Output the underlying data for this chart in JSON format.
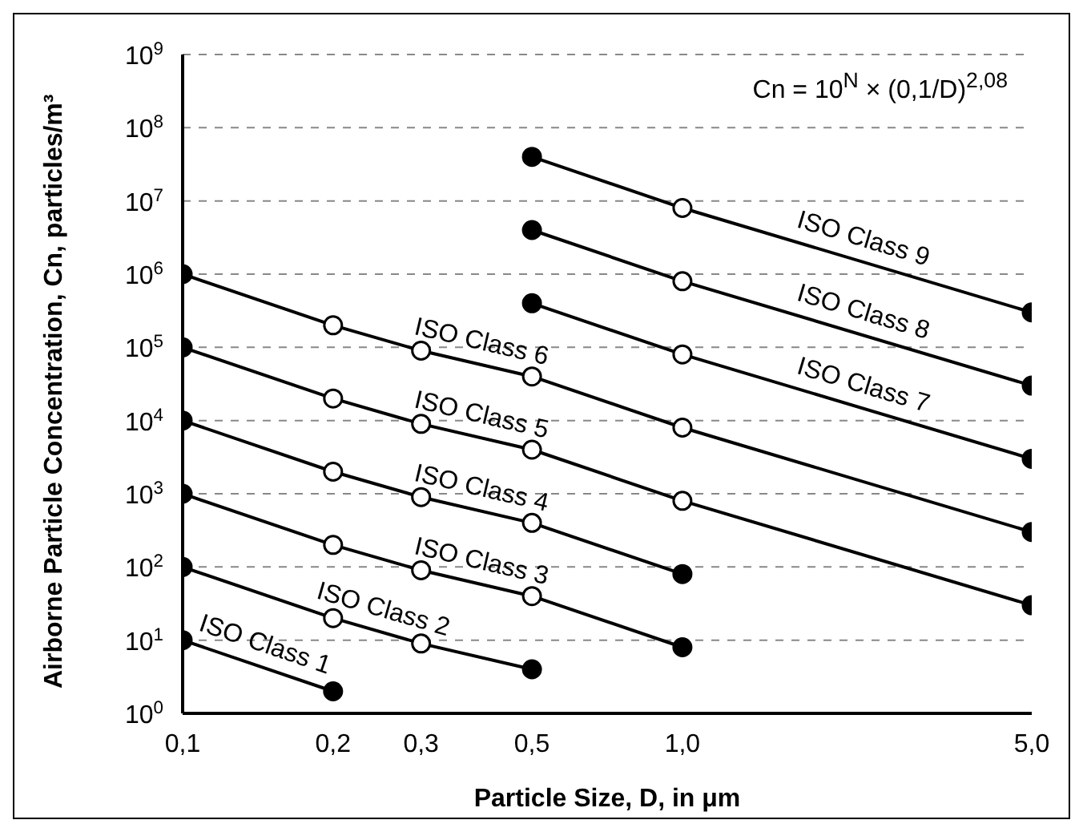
{
  "chart_data": {
    "type": "line",
    "xlabel": "Particle Size, D, in μm",
    "ylabel": "Airborne Particle Concentration, Cn, particles/m³",
    "log": "xy",
    "grid": "y",
    "marker": "circle",
    "xlim": [
      0.1,
      5
    ],
    "xticks": [
      {
        "value": 0.1,
        "label": "0,1"
      },
      {
        "value": 0.2,
        "label": "0,2"
      },
      {
        "value": 0.3,
        "label": "0,3"
      },
      {
        "value": 0.5,
        "label": "0,5"
      },
      {
        "value": 1,
        "label": "1,0"
      },
      {
        "value": 5,
        "label": "5,0"
      }
    ],
    "ylim": [
      1,
      1000000000
    ],
    "yticks": [
      {
        "value": 1,
        "label": "10$^{0}$"
      },
      {
        "value": 10,
        "label": "10$^{1}$"
      },
      {
        "value": 100,
        "label": "10$^{2}$"
      },
      {
        "value": 1000,
        "label": "10$^{3}$"
      },
      {
        "value": 10000,
        "label": "10$^{4}$"
      },
      {
        "value": 100000,
        "label": "10$^{5}$"
      },
      {
        "value": 1000000,
        "label": "10$^{6}$"
      },
      {
        "value": 10000000,
        "label": "10$^{7}$"
      },
      {
        "value": 100000000,
        "label": "10$^{8}$"
      },
      {
        "value": 1000000000,
        "label": "10$^{9}$"
      }
    ],
    "annotations": [
      "Cn = 10$^{N}$ × (0,1/D)$^{2,08}$"
    ],
    "series": [
      {
        "name": "ISO Class 1",
        "color": "#000000",
        "colors": [
          "#000000",
          "#000000"
        ],
        "x": [
          0.1,
          0.2
        ],
        "values": [
          10,
          2
        ]
      },
      {
        "name": "ISO Class 2",
        "color": "#000000",
        "colors": [
          "#000000",
          "#ffffff",
          "#ffffff",
          "#000000"
        ],
        "x": [
          0.1,
          0.2,
          0.3,
          0.5
        ],
        "values": [
          100,
          20,
          9,
          4
        ]
      },
      {
        "name": "ISO Class 3",
        "color": "#000000",
        "colors": [
          "#000000",
          "#ffffff",
          "#ffffff",
          "#ffffff",
          "#000000"
        ],
        "x": [
          0.1,
          0.2,
          0.3,
          0.5,
          1
        ],
        "values": [
          1000,
          200,
          90,
          40,
          8
        ]
      },
      {
        "name": "ISO Class 4",
        "color": "#000000",
        "colors": [
          "#000000",
          "#ffffff",
          "#ffffff",
          "#ffffff",
          "#000000"
        ],
        "x": [
          0.1,
          0.2,
          0.3,
          0.5,
          1
        ],
        "values": [
          10000,
          2000,
          900,
          400,
          80
        ]
      },
      {
        "name": "ISO Class 5",
        "color": "#000000",
        "colors": [
          "#000000",
          "#ffffff",
          "#ffffff",
          "#ffffff",
          "#ffffff",
          "#000000"
        ],
        "x": [
          0.1,
          0.2,
          0.3,
          0.5,
          1,
          5
        ],
        "values": [
          100000,
          20000,
          9000,
          4000,
          800,
          30
        ]
      },
      {
        "name": "ISO Class 6",
        "color": "#000000",
        "colors": [
          "#000000",
          "#ffffff",
          "#ffffff",
          "#ffffff",
          "#ffffff",
          "#000000"
        ],
        "x": [
          0.1,
          0.2,
          0.3,
          0.5,
          1,
          5
        ],
        "values": [
          1000000,
          200000,
          90000,
          40000,
          8000,
          300
        ]
      },
      {
        "name": "ISO Class 7",
        "color": "#000000",
        "colors": [
          "#000000",
          "#ffffff",
          "#000000"
        ],
        "x": [
          0.5,
          1,
          5
        ],
        "values": [
          400000,
          80000,
          3000
        ]
      },
      {
        "name": "ISO Class 8",
        "color": "#000000",
        "colors": [
          "#000000",
          "#ffffff",
          "#000000"
        ],
        "x": [
          0.5,
          1,
          5
        ],
        "values": [
          4000000,
          800000,
          30000
        ]
      },
      {
        "name": "ISO Class 9",
        "color": "#000000",
        "colors": [
          "#000000",
          "#ffffff",
          "#000000"
        ],
        "x": [
          0.5,
          1,
          5
        ],
        "values": [
          40000000,
          8000000,
          300000
        ]
      }
    ]
  }
}
